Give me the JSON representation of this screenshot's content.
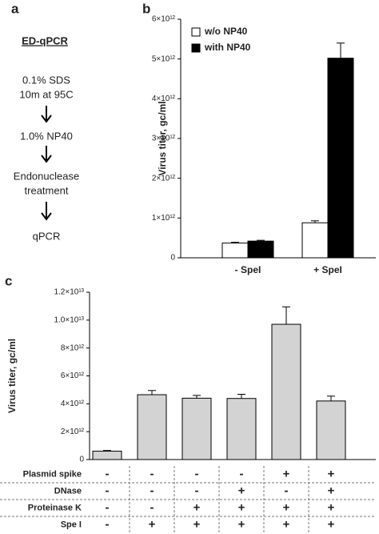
{
  "panel_a": {
    "label": "a",
    "title": "ED-qPCR",
    "steps": [
      "0.1% SDS",
      "10m at 95C",
      "1.0% NP40",
      "Endonuclease",
      "treatment",
      "qPCR"
    ]
  },
  "chart_data": [
    {
      "type": "bar",
      "label": "b",
      "ylabel": "Virus titer, gc/ml",
      "categories": [
        "- SpeI",
        "+ SpeI"
      ],
      "series": [
        {
          "name": "w/o NP40",
          "color": "#ffffff",
          "values": [
            370000000000.0,
            880000000000.0
          ],
          "errors": [
            20000000000.0,
            50000000000.0
          ]
        },
        {
          "name": "with NP40",
          "color": "#000000",
          "values": [
            420000000000.0,
            5020000000000.0
          ],
          "errors": [
            20000000000.0,
            380000000000.0
          ]
        }
      ],
      "ylim": [
        0,
        6000000000000.0
      ],
      "yticks": [
        0,
        {
          "value": 1000000000000.0,
          "label": "1×10¹²"
        },
        {
          "value": 2000000000000.0,
          "label": "2×10¹²"
        },
        {
          "value": 3000000000000.0,
          "label": "3×10¹²"
        },
        {
          "value": 4000000000000.0,
          "label": "4×10¹²"
        },
        {
          "value": 5000000000000.0,
          "label": "5×10¹²"
        },
        {
          "value": 6000000000000.0,
          "label": "6×10¹²"
        }
      ],
      "legend": "upper left"
    },
    {
      "type": "bar",
      "label": "c",
      "ylabel": "Virus titer, gc/ml",
      "categories": [
        null,
        null,
        null,
        null,
        null,
        null
      ],
      "series": [
        {
          "color": "#d3d3d3",
          "values": [
            600000000000.0,
            4650000000000.0,
            4400000000000.0,
            4380000000000.0,
            9700000000000.0,
            4200000000000.0
          ],
          "errors": [
            50000000000.0,
            300000000000.0,
            200000000000.0,
            300000000000.0,
            1250000000000.0,
            350000000000.0
          ]
        }
      ],
      "ylim": [
        0,
        12000000000000.0
      ],
      "yticks": [
        0,
        {
          "value": 2000000000000.0,
          "label": "2×10¹²"
        },
        {
          "value": 4000000000000.0,
          "label": "4×10¹²"
        },
        {
          "value": 6000000000000.0,
          "label": "6×10¹²"
        },
        {
          "value": 8000000000000.0,
          "label": "8×10¹²"
        },
        {
          "value": 10000000000000.0,
          "label": "1.0×10¹³"
        },
        {
          "value": 12000000000000.0,
          "label": "1.2×10¹³"
        }
      ],
      "table": [
        {
          "name": "Plasmid spike",
          "cells": [
            "-",
            "-",
            "-",
            "-",
            "+",
            "+"
          ]
        },
        {
          "name": "DNase",
          "cells": [
            "-",
            "-",
            "-",
            "+",
            "-",
            "+"
          ]
        },
        {
          "name": "Proteinase K",
          "cells": [
            "-",
            "-",
            "+",
            "+",
            "+",
            "+"
          ]
        },
        {
          "name": "Spe I",
          "cells": [
            "-",
            "+",
            "+",
            "+",
            "+",
            "+"
          ]
        }
      ]
    }
  ]
}
